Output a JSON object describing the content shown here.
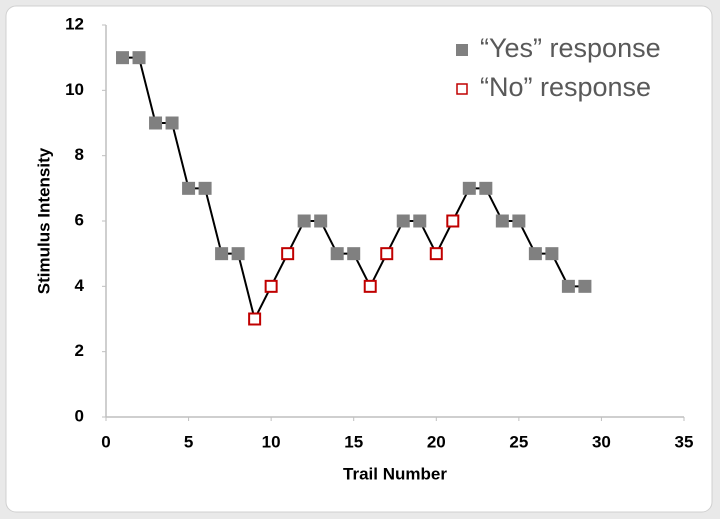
{
  "chart_data": {
    "type": "scatter",
    "x_label": "Trail Number",
    "y_label": "Stimulus Intensity",
    "x": [
      1,
      2,
      3,
      4,
      5,
      6,
      7,
      8,
      9,
      10,
      11,
      12,
      13,
      14,
      15,
      16,
      17,
      18,
      19,
      20,
      21,
      22,
      23,
      24,
      25,
      26,
      27,
      28,
      29
    ],
    "series": [
      {
        "name": "“Yes” response",
        "color": "#808080",
        "marker": "filled",
        "values": [
          11,
          11,
          9,
          9,
          7,
          7,
          5,
          5,
          null,
          null,
          null,
          6,
          6,
          5,
          5,
          null,
          null,
          6,
          6,
          null,
          null,
          7,
          7,
          6,
          6,
          5,
          5,
          4,
          4
        ]
      },
      {
        "name": "“No” response",
        "color": "#c00000",
        "marker": "hollow",
        "values": [
          null,
          null,
          null,
          null,
          null,
          null,
          null,
          null,
          3,
          4,
          5,
          null,
          null,
          null,
          null,
          4,
          5,
          null,
          null,
          5,
          6,
          null,
          null,
          null,
          null,
          null,
          null,
          null,
          null
        ]
      }
    ],
    "connect_line_color": "#000000",
    "xlim": [
      0,
      35
    ],
    "xticks": [
      0,
      5,
      10,
      15,
      20,
      25,
      30,
      35
    ],
    "ylim": [
      0,
      12
    ],
    "yticks": [
      0,
      2,
      4,
      6,
      8,
      10,
      12
    ],
    "grid": false,
    "legend": "top-right"
  }
}
